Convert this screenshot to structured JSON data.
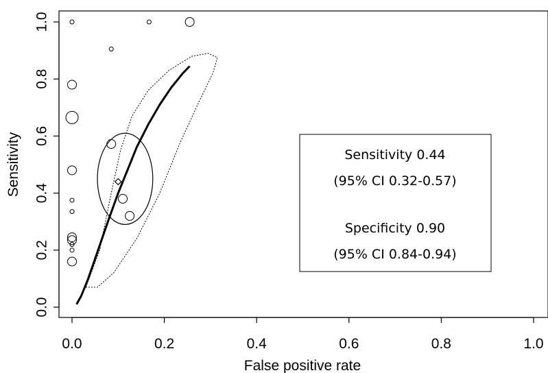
{
  "chart_data": {
    "type": "scatter",
    "title": "",
    "xlabel": "False positive rate",
    "ylabel": "Sensitivity",
    "xlim": [
      0.0,
      1.0
    ],
    "ylim": [
      0.0,
      1.0
    ],
    "x_ticks": [
      "0.0",
      "0.2",
      "0.4",
      "0.6",
      "0.8",
      "1.0"
    ],
    "y_ticks": [
      "0.0",
      "0.2",
      "0.4",
      "0.6",
      "0.8",
      "1.0"
    ],
    "grid": false,
    "studies": [
      {
        "x": 0.0,
        "y": 1.0,
        "size": "small"
      },
      {
        "x": 0.167,
        "y": 1.0,
        "size": "small"
      },
      {
        "x": 0.255,
        "y": 1.0,
        "size": "medium"
      },
      {
        "x": 0.085,
        "y": 0.905,
        "size": "small"
      },
      {
        "x": 0.0,
        "y": 0.78,
        "size": "medium"
      },
      {
        "x": 0.0,
        "y": 0.665,
        "size": "large"
      },
      {
        "x": 0.085,
        "y": 0.572,
        "size": "medium"
      },
      {
        "x": 0.0,
        "y": 0.48,
        "size": "medium"
      },
      {
        "x": 0.11,
        "y": 0.38,
        "size": "medium"
      },
      {
        "x": 0.0,
        "y": 0.375,
        "size": "small"
      },
      {
        "x": 0.0,
        "y": 0.335,
        "size": "small"
      },
      {
        "x": 0.125,
        "y": 0.32,
        "size": "medium"
      },
      {
        "x": 0.0,
        "y": 0.245,
        "size": "medium"
      },
      {
        "x": 0.0,
        "y": 0.235,
        "size": "medium"
      },
      {
        "x": 0.0,
        "y": 0.22,
        "size": "small"
      },
      {
        "x": 0.0,
        "y": 0.2,
        "size": "small"
      },
      {
        "x": 0.0,
        "y": 0.16,
        "size": "medium"
      }
    ],
    "summary_point": {
      "x": 0.1,
      "y": 0.44
    },
    "sroc_curve": [
      [
        0.01,
        0.01
      ],
      [
        0.02,
        0.04
      ],
      [
        0.035,
        0.1
      ],
      [
        0.05,
        0.17
      ],
      [
        0.065,
        0.24
      ],
      [
        0.08,
        0.31
      ],
      [
        0.1,
        0.4
      ],
      [
        0.12,
        0.48
      ],
      [
        0.14,
        0.56
      ],
      [
        0.165,
        0.64
      ],
      [
        0.19,
        0.71
      ],
      [
        0.215,
        0.77
      ],
      [
        0.24,
        0.82
      ],
      [
        0.255,
        0.845
      ]
    ],
    "confidence_region": {
      "cx": 0.115,
      "cy": 0.45,
      "rx": 0.06,
      "ry": 0.16
    },
    "prediction_region": [
      [
        0.03,
        0.07
      ],
      [
        0.06,
        0.2
      ],
      [
        0.085,
        0.4
      ],
      [
        0.105,
        0.55
      ],
      [
        0.13,
        0.67
      ],
      [
        0.165,
        0.76
      ],
      [
        0.21,
        0.83
      ],
      [
        0.26,
        0.88
      ],
      [
        0.295,
        0.89
      ],
      [
        0.315,
        0.875
      ],
      [
        0.305,
        0.82
      ],
      [
        0.275,
        0.72
      ],
      [
        0.235,
        0.58
      ],
      [
        0.19,
        0.4
      ],
      [
        0.14,
        0.24
      ],
      [
        0.09,
        0.12
      ],
      [
        0.055,
        0.07
      ],
      [
        0.03,
        0.07
      ]
    ],
    "annotation": {
      "sensitivity_line1": "Sensitivity 0.44",
      "sensitivity_line2": "(95% CI 0.32-0.57)",
      "specificity_line1": "Specificity 0.90",
      "specificity_line2": "(95% CI 0.84-0.94)"
    }
  }
}
